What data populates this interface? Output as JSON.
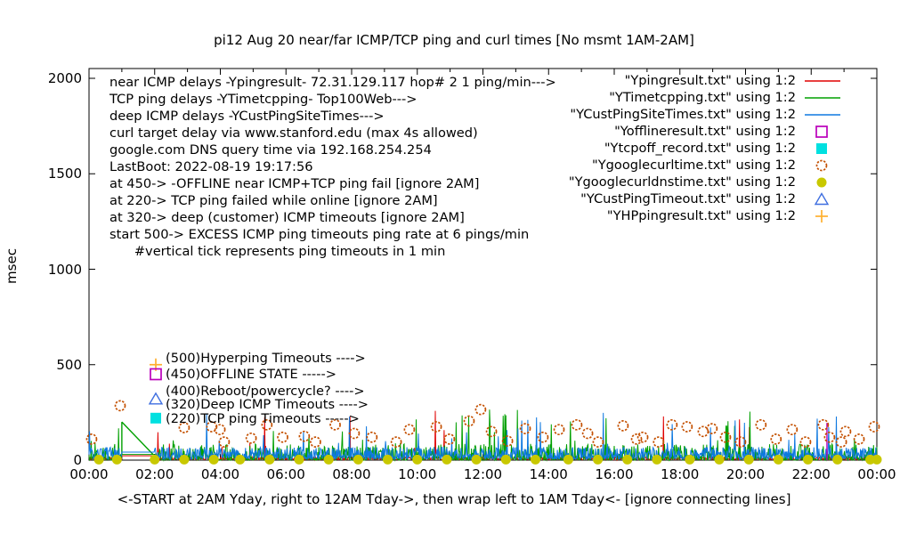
{
  "title": "pi12 Aug 20  near/far ICMP/TCP ping and curl times [No msmt 1AM-2AM]",
  "ylabel": "msec",
  "caption": "<-START at 2AM Yday, right to 12AM Tday->, then wrap left to 1AM Tday<- [ignore connecting lines]",
  "annotations": {
    "lines": [
      "near ICMP delays -Ypingresult- 72.31.129.117 hop# 2 1 ping/min--->",
      "TCP ping delays -YTimetcpping- Top100Web--->",
      "deep ICMP delays -YCustPingSiteTimes--->",
      "curl target delay via www.stanford.edu (max 4s allowed)",
      "google.com DNS query time via 192.168.254.254",
      "LastBoot: 2022-08-19 19:17:56",
      "at 450-> -OFFLINE near ICMP+TCP ping fail [ignore 2AM]",
      "at 220-> TCP ping failed while online [ignore 2AM]",
      "at 320-> deep (customer) ICMP timeouts [ignore 2AM]",
      "start 500-> EXCESS ICMP ping timeouts ping rate at 6 pings/min",
      "      #vertical tick represents ping timeouts in 1 min"
    ]
  },
  "legend": {
    "entries": [
      {
        "label": "\"Ypingresult.txt\" using 1:2",
        "glyph": "line",
        "color": "#e00000"
      },
      {
        "label": "\"YTimetcpping.txt\" using 1:2",
        "glyph": "line",
        "color": "#00a000"
      },
      {
        "label": "\"YCustPingSiteTimes.txt\" using 1:2",
        "glyph": "line",
        "color": "#0e78e0"
      },
      {
        "label": "\"Yofflineresult.txt\" using 1:2",
        "glyph": "open-square",
        "color": "#bb00bb"
      },
      {
        "label": "\"Ytcpoff_record.txt\" using 1:2",
        "glyph": "filled-square",
        "color": "#00e0e0"
      },
      {
        "label": "\"Ygooglecurltime.txt\" using 1:2",
        "glyph": "open-circle",
        "color": "#c45000"
      },
      {
        "label": "\"Ygooglecurldnstime.txt\" using 1:2",
        "glyph": "filled-circle",
        "color": "#c8c800"
      },
      {
        "label": "\"YCustPingTimeout.txt\" using 1:2",
        "glyph": "open-triangle",
        "color": "#3f6fe0"
      },
      {
        "label": "\"YHPpingresult.txt\" using 1:2",
        "glyph": "plus",
        "color": "#ffb030"
      }
    ]
  },
  "callouts": [
    {
      "label": "(500)Hyperping Timeouts ---->",
      "marker": "plus",
      "color": "#ffb030",
      "marker_msec": 500,
      "label_msec": 530
    },
    {
      "label": "(450)OFFLINE STATE ----->",
      "marker": "open-square",
      "color": "#bb00bb",
      "marker_msec": 450,
      "label_msec": 447
    },
    {
      "label": "(400)Reboot/powercycle? ---->",
      "marker": null,
      "color": null,
      "marker_msec": null,
      "label_msec": 359
    },
    {
      "label": "(320)Deep ICMP Timeouts ---->",
      "marker": "open-triangle",
      "color": "#3f6fe0",
      "marker_msec": 320,
      "label_msec": 289
    },
    {
      "label": "(220)TCP ping Timeouts ----->",
      "marker": "filled-square",
      "color": "#00e0e0",
      "marker_msec": 220,
      "label_msec": 214
    }
  ],
  "chart_data": {
    "type": "line",
    "title": "pi12 Aug 20  near/far ICMP/TCP ping and curl times [No msmt 1AM-2AM]",
    "xlabel": "<-START at 2AM Yday, right to 12AM Tday->, then wrap left to 1AM Tday<- [ignore connecting lines]",
    "ylabel": "msec",
    "x_range_hours": [
      0,
      24
    ],
    "ylim": [
      0,
      2050
    ],
    "yticks": [
      0,
      500,
      1000,
      1500,
      2000
    ],
    "xticks": [
      "00:00",
      "02:00",
      "04:00",
      "06:00",
      "08:00",
      "10:00",
      "12:00",
      "14:00",
      "16:00",
      "18:00",
      "20:00",
      "22:00",
      "00:00"
    ],
    "grid": false,
    "legend_position": "top-right-inside",
    "no_measurement_gap_hours": [
      1,
      2
    ],
    "series": [
      {
        "name": "Ypingresult.txt",
        "color": "#e00000",
        "style": "noise-line",
        "seed": 11,
        "step_min": 1,
        "base": [
          2,
          16
        ],
        "bias": 1.2,
        "spike_p": 0.006,
        "spike": [
          60,
          260
        ],
        "gap_hours": [
          1,
          2
        ],
        "gap_value": 23,
        "segments": []
      },
      {
        "name": "YTimetcpping.txt",
        "color": "#00a000",
        "style": "noise-line",
        "seed": 22,
        "step_min": 1,
        "base": [
          0,
          85
        ],
        "bias": 2.5,
        "spike_p": 0.022,
        "spike": [
          80,
          270
        ],
        "gap_hours": [
          1,
          2
        ],
        "gap_value": 30,
        "segments": [
          [
            1.0,
            200,
            1.0,
            30
          ],
          [
            1.0,
            200,
            1.95,
            30
          ]
        ]
      },
      {
        "name": "YCustPingSiteTimes.txt",
        "color": "#0e78e0",
        "style": "noise-line",
        "seed": 33,
        "step_min": 1,
        "base": [
          5,
          68
        ],
        "bias": 1.6,
        "spike_p": 0.02,
        "spike": [
          70,
          250
        ],
        "gap_hours": [
          1,
          2
        ],
        "gap_value": 42,
        "segments": []
      },
      {
        "name": "Yofflineresult.txt",
        "color": "#bb00bb",
        "style": "segments",
        "segments": [
          [
            22.48,
            0,
            22.48,
            195
          ]
        ]
      },
      {
        "name": "Ytcpoff_record.txt",
        "color": "#00e0e0",
        "style": "points",
        "marker": "filled-square",
        "points": []
      },
      {
        "name": "Ygooglecurltime.txt",
        "color": "#c45000",
        "style": "points",
        "marker": "open-circle",
        "points": [
          [
            0.08,
            110
          ],
          [
            0.95,
            285
          ],
          [
            2.9,
            170
          ],
          [
            3.74,
            175
          ],
          [
            3.99,
            160
          ],
          [
            4.12,
            95
          ],
          [
            4.94,
            115
          ],
          [
            5.42,
            185
          ],
          [
            5.9,
            120
          ],
          [
            6.56,
            125
          ],
          [
            6.9,
            95
          ],
          [
            7.5,
            185
          ],
          [
            8.08,
            140
          ],
          [
            8.62,
            120
          ],
          [
            9.36,
            95
          ],
          [
            9.76,
            160
          ],
          [
            10.58,
            175
          ],
          [
            10.98,
            110
          ],
          [
            11.58,
            205
          ],
          [
            11.93,
            265
          ],
          [
            12.26,
            150
          ],
          [
            12.75,
            100
          ],
          [
            13.29,
            165
          ],
          [
            13.83,
            120
          ],
          [
            14.32,
            160
          ],
          [
            14.86,
            185
          ],
          [
            15.19,
            140
          ],
          [
            15.51,
            95
          ],
          [
            16.27,
            180
          ],
          [
            16.68,
            110
          ],
          [
            16.87,
            120
          ],
          [
            17.35,
            95
          ],
          [
            17.76,
            185
          ],
          [
            18.22,
            175
          ],
          [
            18.71,
            150
          ],
          [
            18.98,
            165
          ],
          [
            19.39,
            120
          ],
          [
            19.85,
            95
          ],
          [
            20.47,
            185
          ],
          [
            20.93,
            110
          ],
          [
            21.42,
            160
          ],
          [
            21.83,
            95
          ],
          [
            22.37,
            185
          ],
          [
            22.56,
            120
          ],
          [
            22.92,
            95
          ],
          [
            23.05,
            150
          ],
          [
            23.46,
            110
          ],
          [
            23.92,
            175
          ]
        ]
      },
      {
        "name": "Ygooglecurldnstime.txt",
        "color": "#c8c800",
        "style": "points",
        "marker": "filled-circle",
        "points": [
          [
            0.3,
            3
          ],
          [
            0.85,
            3
          ],
          [
            2.0,
            3
          ],
          [
            2.9,
            3
          ],
          [
            3.8,
            3
          ],
          [
            4.6,
            3
          ],
          [
            5.5,
            3
          ],
          [
            6.4,
            3
          ],
          [
            7.3,
            3
          ],
          [
            8.2,
            3
          ],
          [
            9.1,
            3
          ],
          [
            10.0,
            3
          ],
          [
            10.9,
            3
          ],
          [
            11.8,
            3
          ],
          [
            12.7,
            3
          ],
          [
            13.6,
            3
          ],
          [
            14.6,
            3
          ],
          [
            15.5,
            3
          ],
          [
            16.4,
            3
          ],
          [
            17.3,
            3
          ],
          [
            18.3,
            3
          ],
          [
            19.2,
            3
          ],
          [
            20.1,
            3
          ],
          [
            21.0,
            3
          ],
          [
            21.9,
            3
          ],
          [
            22.8,
            3
          ],
          [
            23.8,
            3
          ],
          [
            24.0,
            3
          ]
        ]
      },
      {
        "name": "YCustPingTimeout.txt",
        "color": "#3f6fe0",
        "style": "points",
        "marker": "open-triangle",
        "points": []
      },
      {
        "name": "YHPpingresult.txt",
        "color": "#ffb030",
        "style": "points",
        "marker": "plus",
        "points": []
      }
    ]
  }
}
